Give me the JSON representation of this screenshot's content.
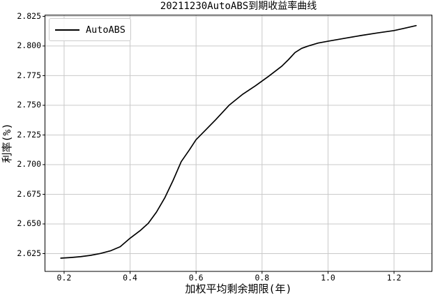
{
  "chart_data": {
    "type": "line",
    "title": "20211230AutoABS到期收益率曲线",
    "xlabel": "加权平均剩余期限(年)",
    "ylabel": "利率(%)",
    "grid": true,
    "legend": {
      "position": "upper left",
      "entries": [
        {
          "label": "AutoABS",
          "color": "#000000"
        }
      ]
    },
    "xlim": [
      0.142,
      1.315
    ],
    "ylim": [
      2.61,
      2.826
    ],
    "x_ticks": [
      0.2,
      0.4,
      0.6,
      0.8,
      1.0,
      1.2
    ],
    "x_tick_labels": [
      "0.2",
      "0.4",
      "0.6",
      "0.8",
      "1.0",
      "1.2"
    ],
    "y_ticks": [
      2.625,
      2.65,
      2.675,
      2.7,
      2.725,
      2.75,
      2.775,
      2.8,
      2.825
    ],
    "y_tick_labels": [
      "2.625",
      "2.650",
      "2.675",
      "2.700",
      "2.725",
      "2.750",
      "2.775",
      "2.800",
      "2.825"
    ],
    "colors": {
      "line": "#000000",
      "grid": "#c9c9c9",
      "spine": "#000000",
      "text": "#000000",
      "legend_border": "#cccccc"
    },
    "series": [
      {
        "name": "AutoABS",
        "color": "#000000",
        "points": [
          [
            0.19,
            2.6212
          ],
          [
            0.22,
            2.6217
          ],
          [
            0.25,
            2.6224
          ],
          [
            0.28,
            2.6235
          ],
          [
            0.31,
            2.6251
          ],
          [
            0.34,
            2.6273
          ],
          [
            0.37,
            2.6308
          ],
          [
            0.4,
            2.638
          ],
          [
            0.43,
            2.6443
          ],
          [
            0.455,
            2.6505
          ],
          [
            0.48,
            2.66
          ],
          [
            0.505,
            2.672
          ],
          [
            0.53,
            2.6865
          ],
          [
            0.555,
            2.7025
          ],
          [
            0.58,
            2.7125
          ],
          [
            0.6,
            2.721
          ],
          [
            0.63,
            2.7295
          ],
          [
            0.66,
            2.738
          ],
          [
            0.7,
            2.75
          ],
          [
            0.74,
            2.759
          ],
          [
            0.78,
            2.7665
          ],
          [
            0.82,
            2.7745
          ],
          [
            0.86,
            2.783
          ],
          [
            0.88,
            2.7885
          ],
          [
            0.9,
            2.7945
          ],
          [
            0.92,
            2.798
          ],
          [
            0.94,
            2.8
          ],
          [
            0.97,
            2.8025
          ],
          [
            1.0,
            2.804
          ],
          [
            1.05,
            2.8065
          ],
          [
            1.1,
            2.8088
          ],
          [
            1.15,
            2.811
          ],
          [
            1.2,
            2.813
          ],
          [
            1.23,
            2.8148
          ],
          [
            1.267,
            2.8172
          ]
        ]
      }
    ]
  }
}
